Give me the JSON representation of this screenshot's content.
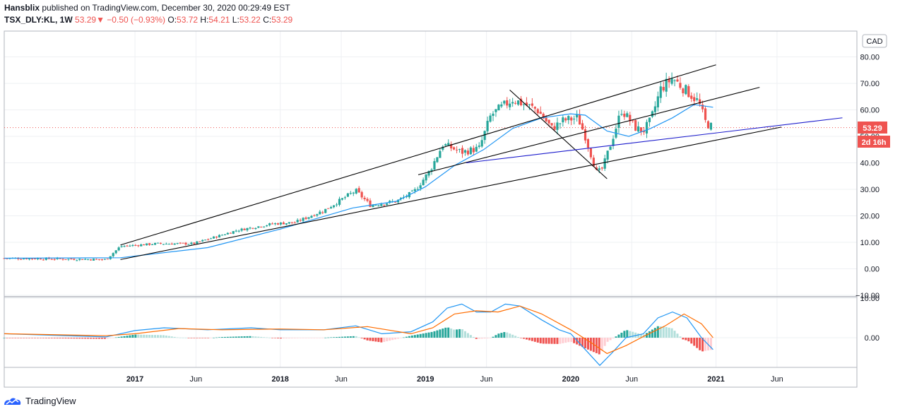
{
  "header": {
    "author": "Hansblix",
    "published_text": "published on TradingView.com, December 30, 2020 00:29:49 EST",
    "symbol": "TSX_DLY:KL, 1W",
    "last": "53.29",
    "change_arrow": "▼",
    "change": "−0.50 (−0.93%)",
    "o_label": "O:",
    "o_value": "53.72",
    "h_label": "H:",
    "h_value": "54.21",
    "l_label": "L:",
    "l_value": "53.22",
    "c_label": "C:",
    "c_value": "53.29"
  },
  "footer": {
    "brand": "TradingView"
  },
  "colors": {
    "up": "#26a69a",
    "down": "#ef5350",
    "ma": "#2196f3",
    "grid": "#eef0f3",
    "trend": "#000000",
    "support": "#1a1acc",
    "macd": "#2196f3",
    "signal": "#ff6d00",
    "hist_up_strong": "#26a69a",
    "hist_up_weak": "#b2dfdb",
    "hist_down_strong": "#ef5350",
    "hist_down_weak": "#ffcdd2"
  },
  "chart_data": {
    "type": "candlestick",
    "title": "TSX_DLY:KL, 1W",
    "currency": "CAD",
    "x_axis": {
      "labels": [
        "2017",
        "Jun",
        "2018",
        "Jun",
        "2019",
        "Jun",
        "2020",
        "Jun",
        "2021",
        "Jun"
      ],
      "label_dates": [
        2017.0,
        2017.42,
        2018.0,
        2018.42,
        2019.0,
        2019.42,
        2020.0,
        2020.42,
        2021.0,
        2021.42
      ],
      "range": [
        2016.1,
        2021.97
      ]
    },
    "price_axis": {
      "ticks": [
        "80.00",
        "70.00",
        "60.00",
        "50.00",
        "40.00",
        "30.00",
        "20.00",
        "10.00",
        "0.00",
        "−10.00"
      ],
      "tick_values": [
        80,
        70,
        60,
        50,
        40,
        30,
        20,
        10,
        0,
        -10
      ],
      "range": [
        -10,
        90
      ]
    },
    "last_price": {
      "value": 53.29,
      "label": "53.29",
      "countdown": "2d 16h"
    },
    "price_waypoints": [
      [
        2016.1,
        4.0
      ],
      [
        2016.8,
        3.5
      ],
      [
        2016.9,
        8.5
      ],
      [
        2017.15,
        9.5
      ],
      [
        2017.4,
        9.5
      ],
      [
        2017.7,
        14.5
      ],
      [
        2017.95,
        17.0
      ],
      [
        2018.1,
        17.5
      ],
      [
        2018.3,
        22.0
      ],
      [
        2018.52,
        29.5
      ],
      [
        2018.62,
        24.0
      ],
      [
        2018.8,
        25.5
      ],
      [
        2018.92,
        29.0
      ],
      [
        2019.03,
        37.0
      ],
      [
        2019.12,
        47.0
      ],
      [
        2019.25,
        44.0
      ],
      [
        2019.37,
        45.5
      ],
      [
        2019.45,
        58.0
      ],
      [
        2019.6,
        64.0
      ],
      [
        2019.77,
        60.0
      ],
      [
        2019.87,
        53.0
      ],
      [
        2019.95,
        56.0
      ],
      [
        2020.05,
        57.0
      ],
      [
        2020.1,
        50.0
      ],
      [
        2020.18,
        36.0
      ],
      [
        2020.22,
        38.0
      ],
      [
        2020.28,
        48.0
      ],
      [
        2020.35,
        60.0
      ],
      [
        2020.45,
        53.0
      ],
      [
        2020.5,
        52.0
      ],
      [
        2020.55,
        56.0
      ],
      [
        2020.62,
        68.0
      ],
      [
        2020.7,
        72.0
      ],
      [
        2020.8,
        67.0
      ],
      [
        2020.88,
        63.0
      ],
      [
        2020.93,
        55.0
      ],
      [
        2020.98,
        53.3
      ]
    ],
    "moving_average": [
      [
        2016.1,
        4.0
      ],
      [
        2016.9,
        4.2
      ],
      [
        2017.5,
        8.0
      ],
      [
        2018.0,
        15.0
      ],
      [
        2018.5,
        23.0
      ],
      [
        2018.8,
        25.5
      ],
      [
        2019.0,
        31.0
      ],
      [
        2019.2,
        39.0
      ],
      [
        2019.4,
        45.0
      ],
      [
        2019.6,
        53.0
      ],
      [
        2019.8,
        57.0
      ],
      [
        2020.0,
        58.5
      ],
      [
        2020.1,
        58.0
      ],
      [
        2020.25,
        52.0
      ],
      [
        2020.4,
        50.0
      ],
      [
        2020.55,
        53.0
      ],
      [
        2020.7,
        57.0
      ],
      [
        2020.85,
        62.0
      ],
      [
        2020.98,
        61.0
      ]
    ],
    "trendlines": [
      {
        "name": "channel-upper",
        "from": [
          2016.9,
          9.0
        ],
        "to": [
          2021.0,
          77.0
        ]
      },
      {
        "name": "channel-lower",
        "from": [
          2016.9,
          3.5
        ],
        "to": [
          2021.45,
          53.5
        ]
      },
      {
        "name": "middle-line",
        "from": [
          2018.95,
          35.5
        ],
        "to": [
          2021.3,
          68.5
        ]
      },
      {
        "name": "downtrend",
        "from": [
          2019.58,
          67.5
        ],
        "to": [
          2020.25,
          34.0
        ]
      },
      {
        "name": "support",
        "from": [
          2019.28,
          40.0
        ],
        "to": [
          2021.87,
          57.0
        ]
      }
    ],
    "macd": {
      "ticks": [
        "10.00",
        "0.00"
      ],
      "tick_values": [
        10,
        0
      ],
      "range": [
        -9,
        12
      ],
      "macd_line": [
        [
          2016.1,
          1.0
        ],
        [
          2016.8,
          0.2
        ],
        [
          2017.0,
          1.8
        ],
        [
          2017.2,
          2.5
        ],
        [
          2017.5,
          2.0
        ],
        [
          2017.8,
          2.5
        ],
        [
          2018.0,
          2.0
        ],
        [
          2018.3,
          2.0
        ],
        [
          2018.52,
          3.0
        ],
        [
          2018.7,
          1.0
        ],
        [
          2018.9,
          1.5
        ],
        [
          2019.05,
          4.0
        ],
        [
          2019.15,
          7.5
        ],
        [
          2019.25,
          8.5
        ],
        [
          2019.35,
          6.5
        ],
        [
          2019.45,
          6.5
        ],
        [
          2019.55,
          8.5
        ],
        [
          2019.65,
          8.0
        ],
        [
          2019.8,
          4.5
        ],
        [
          2019.92,
          2.0
        ],
        [
          2020.0,
          1.0
        ],
        [
          2020.1,
          -3.0
        ],
        [
          2020.2,
          -7.0
        ],
        [
          2020.28,
          -4.0
        ],
        [
          2020.38,
          0.0
        ],
        [
          2020.5,
          1.0
        ],
        [
          2020.6,
          5.0
        ],
        [
          2020.7,
          6.5
        ],
        [
          2020.8,
          5.0
        ],
        [
          2020.9,
          0.0
        ],
        [
          2020.98,
          -3.0
        ]
      ],
      "signal_line": [
        [
          2016.1,
          1.0
        ],
        [
          2016.8,
          0.5
        ],
        [
          2017.0,
          1.0
        ],
        [
          2017.3,
          2.3
        ],
        [
          2017.6,
          2.0
        ],
        [
          2018.0,
          2.2
        ],
        [
          2018.3,
          2.0
        ],
        [
          2018.6,
          2.8
        ],
        [
          2018.9,
          1.0
        ],
        [
          2019.05,
          2.5
        ],
        [
          2019.2,
          6.0
        ],
        [
          2019.35,
          6.8
        ],
        [
          2019.5,
          6.5
        ],
        [
          2019.65,
          8.0
        ],
        [
          2019.8,
          6.0
        ],
        [
          2020.0,
          2.0
        ],
        [
          2020.15,
          -1.5
        ],
        [
          2020.25,
          -4.0
        ],
        [
          2020.38,
          -2.0
        ],
        [
          2020.5,
          0.3
        ],
        [
          2020.65,
          3.0
        ],
        [
          2020.78,
          6.0
        ],
        [
          2020.9,
          3.5
        ],
        [
          2020.98,
          0.0
        ]
      ]
    }
  }
}
